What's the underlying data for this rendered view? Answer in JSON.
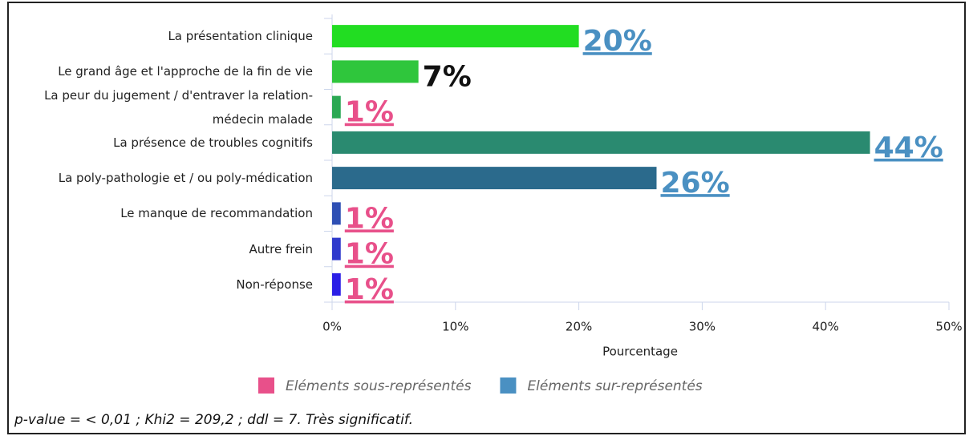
{
  "chart_data": {
    "type": "bar",
    "orientation": "horizontal",
    "categories": [
      "La présentation clinique",
      "Le grand âge et l'approche de la fin de vie",
      "La peur du jugement / d'entraver la relation-médecin malade",
      "La présence de troubles cognitifs",
      "La poly-pathologie et / ou poly-médication",
      "Le manque de recommandation",
      "Autre frein",
      "Non-réponse"
    ],
    "values": [
      20,
      7,
      0.7,
      43.6,
      26.3,
      0.7,
      0.7,
      0.7
    ],
    "value_labels": [
      "20%",
      "7%",
      "1%",
      "44%",
      "26%",
      "1%",
      "1%",
      "1%"
    ],
    "colors": [
      "#22dd22",
      "#2fc63c",
      "#2aa854",
      "#2a8a70",
      "#2b6a8c",
      "#2e4fb4",
      "#2f3acc",
      "#2a1ee6"
    ],
    "label_colors": [
      "#4a90c2",
      "#111111",
      "#e8508a",
      "#4a90c2",
      "#4a90c2",
      "#e8508a",
      "#e8508a",
      "#e8508a"
    ],
    "xlim": [
      0,
      50
    ],
    "xticks": [
      {
        "value": 0,
        "label": "0%"
      },
      {
        "value": 10,
        "label": "10%"
      },
      {
        "value": 20,
        "label": "20%"
      },
      {
        "value": 30,
        "label": "30%"
      },
      {
        "value": 40,
        "label": "40%"
      },
      {
        "value": 50,
        "label": "50%"
      }
    ],
    "xlabel": "Pourcentage",
    "legend": [
      {
        "name": "Eléments sous-représentés",
        "color": "#e8508a"
      },
      {
        "name": "Eléments sur-représentés",
        "color": "#4a90c2"
      }
    ],
    "footnote": "p-value = < 0,01 ; Khi2 = 209,2 ; ddl = 7. Très significatif."
  }
}
